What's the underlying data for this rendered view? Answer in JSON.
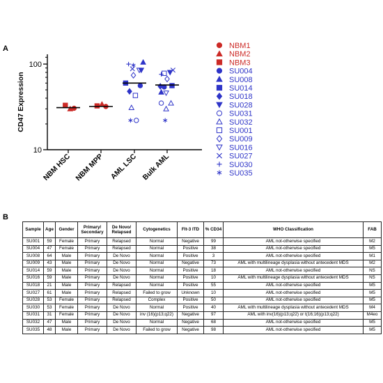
{
  "panels": {
    "a": "A",
    "b": "B"
  },
  "colors": {
    "normal": "#cc2a26",
    "aml": "#2e34c8"
  },
  "chart_data": {
    "type": "scatter",
    "ylabel": "CD47 Expression",
    "yscale": "log",
    "ylim": [
      10,
      130
    ],
    "yticks": [
      10,
      100
    ],
    "categories": [
      "NBM HSC",
      "NBM MPP",
      "AML LSC",
      "Bulk AML"
    ],
    "means": [
      31,
      32,
      60,
      57
    ],
    "legend": [
      {
        "name": "NBM1",
        "marker": "circle",
        "filled": true,
        "color": "#cc2a26"
      },
      {
        "name": "NBM2",
        "marker": "triangle",
        "filled": true,
        "color": "#cc2a26"
      },
      {
        "name": "NBM3",
        "marker": "square",
        "filled": true,
        "color": "#cc2a26"
      },
      {
        "name": "SU004",
        "marker": "circle",
        "filled": true,
        "color": "#2e34c8"
      },
      {
        "name": "SU008",
        "marker": "triangle",
        "filled": true,
        "color": "#2e34c8"
      },
      {
        "name": "SU014",
        "marker": "square",
        "filled": true,
        "color": "#2e34c8"
      },
      {
        "name": "SU018",
        "marker": "diamond",
        "filled": true,
        "color": "#2e34c8"
      },
      {
        "name": "SU028",
        "marker": "triangle-down",
        "filled": true,
        "color": "#2e34c8"
      },
      {
        "name": "SU031",
        "marker": "circle",
        "filled": false,
        "color": "#2e34c8"
      },
      {
        "name": "SU032",
        "marker": "triangle",
        "filled": false,
        "color": "#2e34c8"
      },
      {
        "name": "SU001",
        "marker": "square",
        "filled": false,
        "color": "#2e34c8"
      },
      {
        "name": "SU009",
        "marker": "diamond",
        "filled": false,
        "color": "#2e34c8"
      },
      {
        "name": "SU016",
        "marker": "triangle-down",
        "filled": false,
        "color": "#2e34c8"
      },
      {
        "name": "SU027",
        "marker": "x",
        "filled": false,
        "color": "#2e34c8"
      },
      {
        "name": "SU030",
        "marker": "plus",
        "filled": false,
        "color": "#2e34c8"
      },
      {
        "name": "SU035",
        "marker": "asterisk",
        "filled": false,
        "color": "#2e34c8"
      }
    ],
    "points": [
      {
        "cat": 0,
        "offset": -0.3,
        "y": 33,
        "series": "NBM3"
      },
      {
        "cat": 0,
        "offset": 0.2,
        "y": 30,
        "series": "NBM2"
      },
      {
        "cat": 0,
        "offset": 0.6,
        "y": 30.5,
        "series": "NBM1"
      },
      {
        "cat": 1,
        "offset": -0.4,
        "y": 32.5,
        "series": "NBM3"
      },
      {
        "cat": 1,
        "offset": 0.1,
        "y": 34,
        "series": "NBM2"
      },
      {
        "cat": 1,
        "offset": 0.5,
        "y": 32,
        "series": "NBM1"
      },
      {
        "cat": 2,
        "offset": -0.9,
        "y": 60,
        "series": "SU014"
      },
      {
        "cat": 2,
        "offset": -0.5,
        "y": 48,
        "series": "SU018"
      },
      {
        "cat": 2,
        "offset": 0.6,
        "y": 56,
        "series": "SU004"
      },
      {
        "cat": 2,
        "offset": 0.9,
        "y": 105,
        "series": "SU008"
      },
      {
        "cat": 2,
        "offset": 0.7,
        "y": 85,
        "series": "SU028"
      },
      {
        "cat": 2,
        "offset": -0.6,
        "y": 100,
        "series": "SU030"
      },
      {
        "cat": 2,
        "offset": -0.1,
        "y": 97,
        "series": "SU035"
      },
      {
        "cat": 2,
        "offset": -0.2,
        "y": 88,
        "series": "SU027"
      },
      {
        "cat": 2,
        "offset": 0.5,
        "y": 85,
        "series": "SU016"
      },
      {
        "cat": 2,
        "offset": -0.1,
        "y": 74,
        "series": "SU009"
      },
      {
        "cat": 2,
        "offset": 0.1,
        "y": 43,
        "series": "SU001"
      },
      {
        "cat": 2,
        "offset": -0.3,
        "y": 31,
        "series": "SU032"
      },
      {
        "cat": 2,
        "offset": 0.2,
        "y": 22,
        "series": "SU031"
      },
      {
        "cat": 2,
        "offset": -0.4,
        "y": 22,
        "series": "SU035"
      },
      {
        "cat": 3,
        "offset": -0.6,
        "y": 76,
        "series": "SU030"
      },
      {
        "cat": 3,
        "offset": -0.3,
        "y": 78,
        "series": "SU001"
      },
      {
        "cat": 3,
        "offset": 0.3,
        "y": 80,
        "series": "SU028"
      },
      {
        "cat": 3,
        "offset": 0.6,
        "y": 85,
        "series": "SU027"
      },
      {
        "cat": 3,
        "offset": 0.0,
        "y": 67,
        "series": "SU009"
      },
      {
        "cat": 3,
        "offset": -0.7,
        "y": 55,
        "series": "SU018"
      },
      {
        "cat": 3,
        "offset": -0.3,
        "y": 54,
        "series": "SU004"
      },
      {
        "cat": 3,
        "offset": 0.5,
        "y": 56,
        "series": "SU014"
      },
      {
        "cat": 3,
        "offset": -0.6,
        "y": 47,
        "series": "SU008"
      },
      {
        "cat": 3,
        "offset": -0.1,
        "y": 46,
        "series": "SU016"
      },
      {
        "cat": 3,
        "offset": -0.6,
        "y": 35,
        "series": "SU031"
      },
      {
        "cat": 3,
        "offset": 0.4,
        "y": 35,
        "series": "SU032"
      },
      {
        "cat": 3,
        "offset": -0.1,
        "y": 30,
        "series": "SU032"
      },
      {
        "cat": 3,
        "offset": -0.2,
        "y": 22,
        "series": "SU035"
      }
    ]
  },
  "table": {
    "headers": [
      "Sample",
      "Age",
      "Gender",
      "Primary/ Secondary",
      "De Novo/ Relapsed",
      "Cytogenetics",
      "Flt-3 ITD",
      "% CD34",
      "WHO Classification",
      "FAB"
    ],
    "rows": [
      [
        "SU001",
        "59",
        "Female",
        "Primary",
        "Relapsed",
        "Normal",
        "Negative",
        "99",
        "AML not-otherwise specified",
        "M2"
      ],
      [
        "SU004",
        "47",
        "Female",
        "Primary",
        "Relapsed",
        "Normal",
        "Positive",
        "38",
        "AML not-otherwise specified",
        "M5"
      ],
      [
        "SU008",
        "64",
        "Male",
        "Primary",
        "De Novo",
        "Normal",
        "Positive",
        "3",
        "AML not-otherwise specified",
        "M1"
      ],
      [
        "SU009",
        "43",
        "Male",
        "Primary",
        "De Novo",
        "Normal",
        "Negative",
        "73",
        "AML with multilineage dysplasia without antecedent MDS",
        "M2"
      ],
      [
        "SU014",
        "59",
        "Male",
        "Primary",
        "De Novo",
        "Normal",
        "Positive",
        "18",
        "AML not-otherwise specified",
        "NS"
      ],
      [
        "SU016",
        "59",
        "Male",
        "Primary",
        "De Novo",
        "Normal",
        "Positive",
        "10",
        "AML with multilineage dysplasia without antecedent MDS",
        "NS"
      ],
      [
        "SU018",
        "21",
        "Male",
        "Primary",
        "Relapsed",
        "Normal",
        "Positive",
        "55",
        "AML not-otherwise specified",
        "M5"
      ],
      [
        "SU027",
        "61",
        "Male",
        "Primary",
        "Relapsed",
        "Failed to grow",
        "Unknown",
        "10",
        "AML not-otherwise specified",
        "M5"
      ],
      [
        "SU028",
        "53",
        "Female",
        "Primary",
        "Relapsed",
        "Complex",
        "Positive",
        "50",
        "AML not-otherwise specified",
        "M5"
      ],
      [
        "SU030",
        "53",
        "Female",
        "Primary",
        "De Novo",
        "Normal",
        "Positive",
        "40",
        "AML with multilineage dysplasia without antecedent MDS",
        "M4"
      ],
      [
        "SU031",
        "31",
        "Female",
        "Primary",
        "De Novo",
        "inv (16)(p13;q22)",
        "Negative",
        "97",
        "AML with inv(16)(p13;q22) or t(16;16)(p13;q22)",
        "M4eo"
      ],
      [
        "SU032",
        "47",
        "Male",
        "Primary",
        "De Novo",
        "Normal",
        "Negative",
        "68",
        "AML not-otherwise specified",
        "M5"
      ],
      [
        "SU035",
        "48",
        "Male",
        "Primary",
        "De Novo",
        "Failed to grow",
        "Negative",
        "98",
        "AML not-otherwise specified",
        "M5"
      ]
    ]
  }
}
